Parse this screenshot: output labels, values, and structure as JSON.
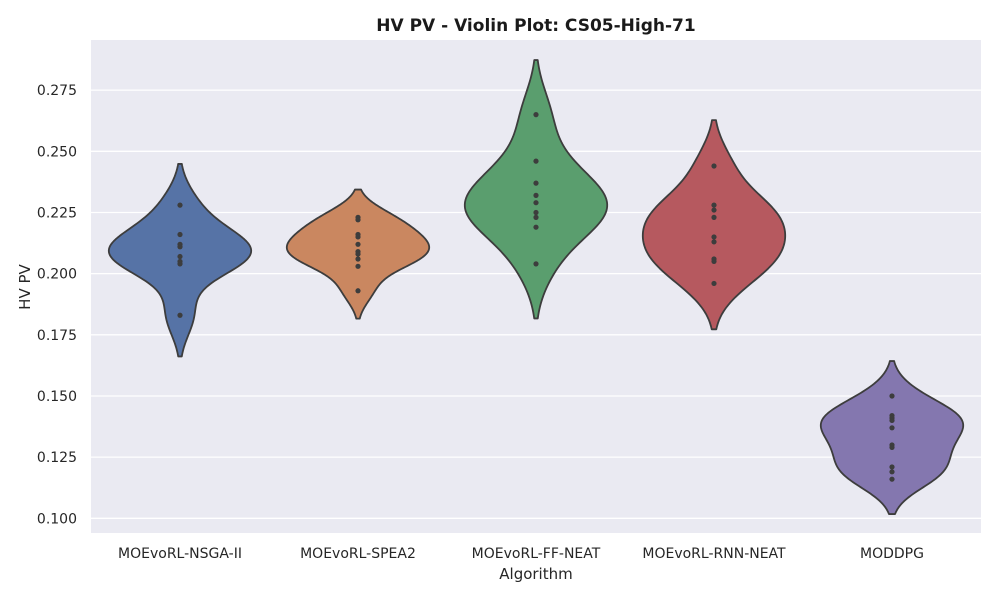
{
  "chart_data": {
    "type": "violin",
    "title": "HV PV - Violin Plot: CS05-High-71",
    "xlabel": "Algorithm",
    "ylabel": "HV PV",
    "ylim": [
      0.094,
      0.2955
    ],
    "yticks": [
      "0.100",
      "0.125",
      "0.150",
      "0.175",
      "0.200",
      "0.225",
      "0.250",
      "0.275"
    ],
    "grid": true,
    "background": "#eaeaf2",
    "outline_color": "#3d3d3d",
    "categories": [
      "MOEvoRL-NSGA-II",
      "MOEvoRL-SPEA2",
      "MOEvoRL-FF-NEAT",
      "MOEvoRL-RNN-NEAT",
      "MODDPG"
    ],
    "series": [
      {
        "color": "#5673a6",
        "values": [
          0.228,
          0.216,
          0.212,
          0.211,
          0.207,
          0.205,
          0.204,
          0.183
        ]
      },
      {
        "color": "#ca8760",
        "values": [
          0.223,
          0.222,
          0.216,
          0.215,
          0.212,
          0.209,
          0.208,
          0.206,
          0.203,
          0.193
        ]
      },
      {
        "color": "#5a9e6e",
        "values": [
          0.265,
          0.246,
          0.237,
          0.232,
          0.229,
          0.225,
          0.223,
          0.219,
          0.204
        ]
      },
      {
        "color": "#b6595f",
        "values": [
          0.244,
          0.228,
          0.226,
          0.223,
          0.215,
          0.213,
          0.206,
          0.205,
          0.196
        ]
      },
      {
        "color": "#8477af",
        "values": [
          0.15,
          0.142,
          0.141,
          0.14,
          0.137,
          0.13,
          0.129,
          0.121,
          0.119,
          0.116
        ]
      }
    ]
  }
}
